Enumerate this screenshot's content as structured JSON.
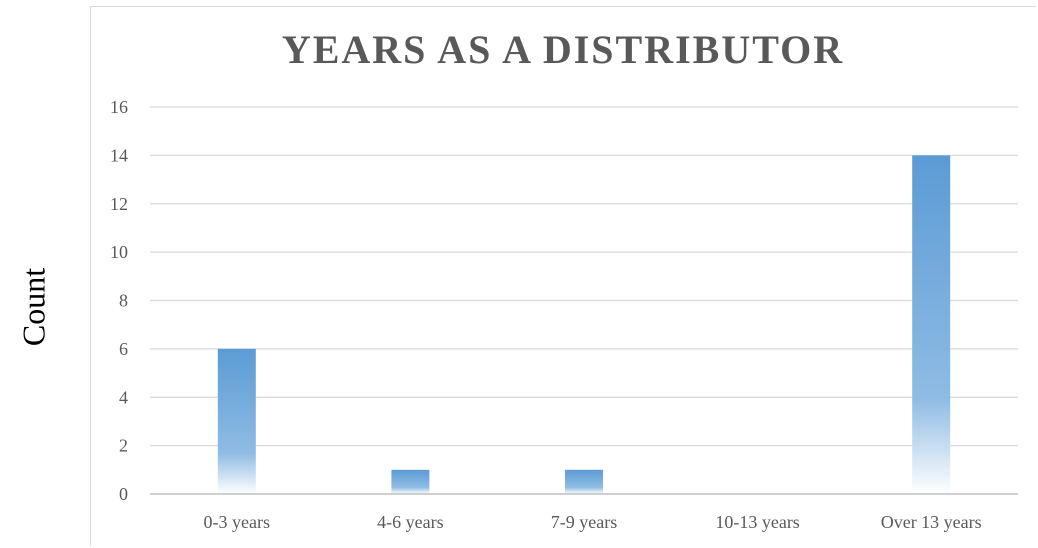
{
  "chart_data": {
    "type": "bar",
    "title": "YEARS AS A DISTRIBUTOR",
    "xlabel": "",
    "ylabel": "Count",
    "categories": [
      "0-3 years",
      "4-6 years",
      "7-9 years",
      "10-13 years",
      "Over 13 years"
    ],
    "values": [
      6,
      1,
      1,
      0,
      14
    ],
    "ylim": [
      0,
      16
    ],
    "yticks": [
      "0",
      "2",
      "4",
      "6",
      "8",
      "10",
      "12",
      "14",
      "16"
    ],
    "grid": true,
    "legend": "none",
    "colors": {
      "bar_top": "#5b9bd5",
      "bar_bottom": "#ffffff",
      "grid": "#d9d9d9",
      "axis": "#bfbfbf",
      "text": "#595959"
    }
  }
}
